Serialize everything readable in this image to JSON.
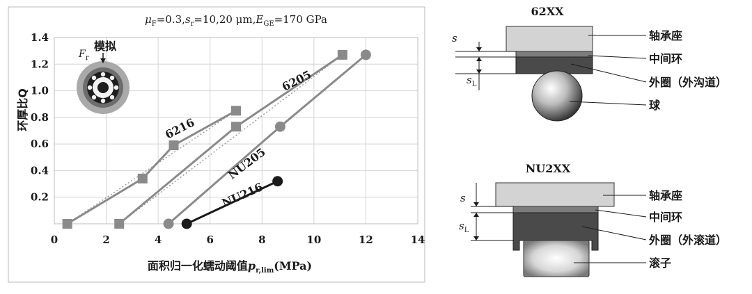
{
  "chart_data": {
    "type": "line",
    "title_parts": {
      "mu": "μ",
      "mu_sub": "F",
      "mu_val": "=0.3,",
      "s": "s",
      "s_sub": "r",
      "s_val": "=10,20 μm,",
      "E": "E",
      "E_sub": "GE",
      "E_val": "=170 GPa"
    },
    "xlabel_parts": {
      "main": "面积归一化蠕动阈值",
      "p": "p",
      "p_sub": "r,lim",
      "unit": "(MPa)"
    },
    "ylabel": "环厚比Q",
    "xlim": [
      0,
      14
    ],
    "ylim": [
      0,
      1.4
    ],
    "x_ticks": [
      "0",
      "2",
      "4",
      "6",
      "8",
      "10",
      "12",
      "14"
    ],
    "y_ticks": [
      "0.2",
      "0.4",
      "0.6",
      "0.8",
      "1.0",
      "1.2",
      "1.4"
    ],
    "grid": true,
    "inset_label": "模拟",
    "inset_force": {
      "F": "F",
      "sub": "r"
    },
    "series": [
      {
        "name": "6216",
        "color": "#8a8a8a",
        "marker": "square",
        "dotted_fit": true,
        "points": [
          [
            0.5,
            0.0
          ],
          [
            3.4,
            0.34
          ],
          [
            4.6,
            0.59
          ],
          [
            7.0,
            0.85
          ]
        ]
      },
      {
        "name": "6205",
        "color": "#8a8a8a",
        "marker": "square",
        "dotted_fit": true,
        "points": [
          [
            2.5,
            0.0
          ],
          [
            7.0,
            0.73
          ],
          [
            11.1,
            1.27
          ]
        ]
      },
      {
        "name": "NU205",
        "color": "#8a8a8a",
        "marker": "circle",
        "dotted_fit": false,
        "points": [
          [
            4.4,
            0.0
          ],
          [
            8.7,
            0.73
          ],
          [
            12.0,
            1.27
          ]
        ]
      },
      {
        "name": "NU216",
        "color": "#1a1a1a",
        "marker": "circle",
        "dotted_fit": false,
        "points": [
          [
            5.1,
            0.0
          ],
          [
            8.6,
            0.32
          ]
        ]
      }
    ]
  },
  "diagram_top": {
    "title": "62XX",
    "s": "s",
    "sL": "s",
    "sL_sub": "L",
    "labels": [
      "轴承座",
      "中间环",
      "外圈（外沟道）",
      "球"
    ]
  },
  "diagram_bottom": {
    "title": "NU2XX",
    "s": "s",
    "sL": "s",
    "sL_sub": "L",
    "labels": [
      "轴承座",
      "中间环",
      "外圈（外滚道）",
      "滚子"
    ]
  }
}
